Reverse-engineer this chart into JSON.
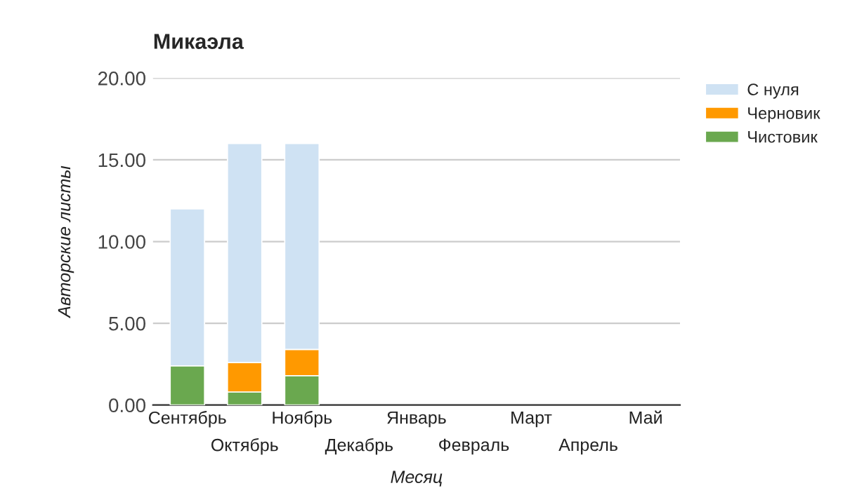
{
  "chart_data": {
    "type": "bar",
    "title": "Микаэла",
    "xlabel": "Месяц",
    "ylabel": "Авторские листы",
    "categories": [
      "Сентябрь",
      "Октябрь",
      "Ноябрь",
      "Декабрь",
      "Январь",
      "Февраль",
      "Март",
      "Апрель",
      "Май"
    ],
    "stacked": true,
    "series": [
      {
        "name": "Чистовик",
        "color": "#6aa84f",
        "values": [
          2.4,
          0.8,
          1.8,
          null,
          null,
          null,
          null,
          null,
          null
        ]
      },
      {
        "name": "Черновик",
        "color": "#ff9900",
        "values": [
          null,
          1.8,
          1.6,
          null,
          null,
          null,
          null,
          null,
          null
        ]
      },
      {
        "name": "С нуля",
        "color": "#cfe2f3",
        "values": [
          9.6,
          13.4,
          12.6,
          null,
          null,
          null,
          null,
          null,
          null
        ]
      }
    ],
    "ylim": [
      0,
      20
    ],
    "yticks": [
      {
        "value": 0,
        "label": "0.00"
      },
      {
        "value": 5,
        "label": "5.00"
      },
      {
        "value": 10,
        "label": "10.00"
      },
      {
        "value": 15,
        "label": "15.00"
      },
      {
        "value": 20,
        "label": "20.00"
      }
    ],
    "grid": "y",
    "legend": "top right"
  }
}
